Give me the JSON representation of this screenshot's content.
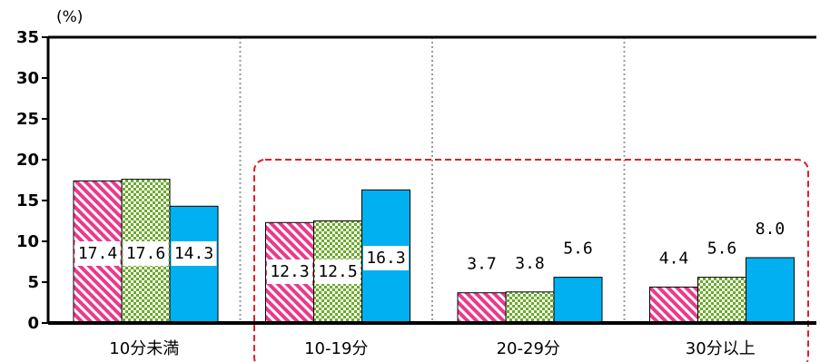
{
  "chart_data": {
    "type": "bar",
    "unit_label": "(%)",
    "categories": [
      "10分未満",
      "10-19分",
      "20-29分",
      "30分以上"
    ],
    "series": [
      {
        "values": [
          17.4,
          12.3,
          3.7,
          4.4
        ],
        "fill": "pink-diagonal-stripe"
      },
      {
        "values": [
          17.6,
          12.5,
          3.8,
          5.6
        ],
        "fill": "green-checker"
      },
      {
        "values": [
          14.3,
          16.3,
          5.6,
          8.0
        ],
        "fill": "#00b0f0"
      }
    ],
    "data_labels": [
      [
        "17.4",
        "12.3",
        "3.7",
        "4.4"
      ],
      [
        "17.6",
        "12.5",
        "3.8",
        "5.6"
      ],
      [
        "14.3",
        "16.3",
        "5.6",
        "8.0"
      ]
    ],
    "yticks": [
      "0",
      "5",
      "10",
      "15",
      "20",
      "25",
      "30",
      "35"
    ],
    "ylim": [
      0,
      35
    ],
    "grid": false,
    "highlight": "red dashed box around 10-19分, 20-29分, 30分以上",
    "colors": {
      "pink": "#e83b8c",
      "green": "#6aaa2a",
      "blue": "#00b0f0",
      "highlight": "#e0202a"
    }
  }
}
